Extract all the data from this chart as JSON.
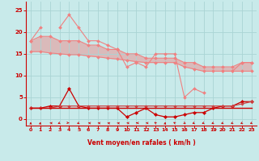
{
  "x": [
    0,
    1,
    2,
    3,
    4,
    5,
    6,
    7,
    8,
    9,
    10,
    11,
    12,
    13,
    14,
    15,
    16,
    17,
    18,
    19,
    20,
    21,
    22,
    23
  ],
  "line_upper_jagged": [
    18,
    21,
    null,
    21,
    24,
    21,
    18,
    18,
    17,
    16,
    12,
    13,
    12,
    15,
    15,
    15,
    5,
    7,
    6,
    null,
    11,
    11,
    13,
    13
  ],
  "line_upper_smooth": [
    18,
    19,
    19,
    18,
    18,
    18,
    17,
    17,
    16,
    16,
    15,
    15,
    14,
    14,
    14,
    14,
    13,
    13,
    12,
    12,
    12,
    12,
    13,
    13
  ],
  "line_lower_smooth": [
    15.5,
    15.5,
    15.2,
    15.0,
    14.8,
    14.8,
    14.5,
    14.3,
    14.0,
    13.8,
    13.5,
    13.2,
    13.0,
    13.0,
    13.0,
    13.0,
    12.0,
    11.5,
    11.0,
    11.0,
    11.0,
    11.0,
    11.0,
    11.0
  ],
  "line_wind_mean": [
    2.5,
    2.5,
    3.0,
    3.0,
    7.0,
    3.0,
    2.5,
    2.5,
    2.5,
    2.5,
    0.5,
    1.5,
    2.5,
    1.0,
    0.5,
    0.5,
    1.0,
    1.5,
    1.5,
    2.5,
    3.0,
    3.0,
    4.0,
    4.0
  ],
  "line_flat_upper": [
    2.5,
    2.5,
    2.5,
    3.0,
    3.0,
    3.0,
    3.0,
    3.0,
    3.0,
    3.0,
    3.0,
    3.0,
    3.0,
    3.0,
    3.0,
    3.0,
    3.0,
    3.0,
    3.0,
    3.0,
    3.0,
    3.0,
    3.5,
    4.0
  ],
  "line_flat_base": [
    2.5,
    2.5,
    2.5,
    2.5,
    2.5,
    2.5,
    2.5,
    2.5,
    2.5,
    2.5,
    2.5,
    2.5,
    2.5,
    2.5,
    2.5,
    2.5,
    2.5,
    2.5,
    2.5,
    2.5,
    2.5,
    2.5,
    2.5,
    2.5
  ],
  "color_light": "#f08080",
  "color_dark": "#cc0000",
  "color_medium": "#cc4444",
  "bg_color": "#c8eaea",
  "grid_color": "#aad4d4",
  "xlabel": "Vent moyen/en rafales ( km/h )",
  "ylim": [
    -1.5,
    27
  ],
  "xlim": [
    -0.5,
    23.5
  ],
  "yticks": [
    0,
    5,
    10,
    15,
    20,
    25
  ],
  "xticks": [
    0,
    1,
    2,
    3,
    4,
    5,
    6,
    7,
    8,
    9,
    10,
    11,
    12,
    13,
    14,
    15,
    16,
    17,
    18,
    19,
    20,
    21,
    22,
    23
  ],
  "arrow_angles": [
    180,
    175,
    260,
    310,
    80,
    310,
    260,
    260,
    255,
    255,
    265,
    270,
    265,
    215,
    175,
    220,
    40,
    310,
    310,
    310,
    310,
    315,
    315,
    315
  ]
}
